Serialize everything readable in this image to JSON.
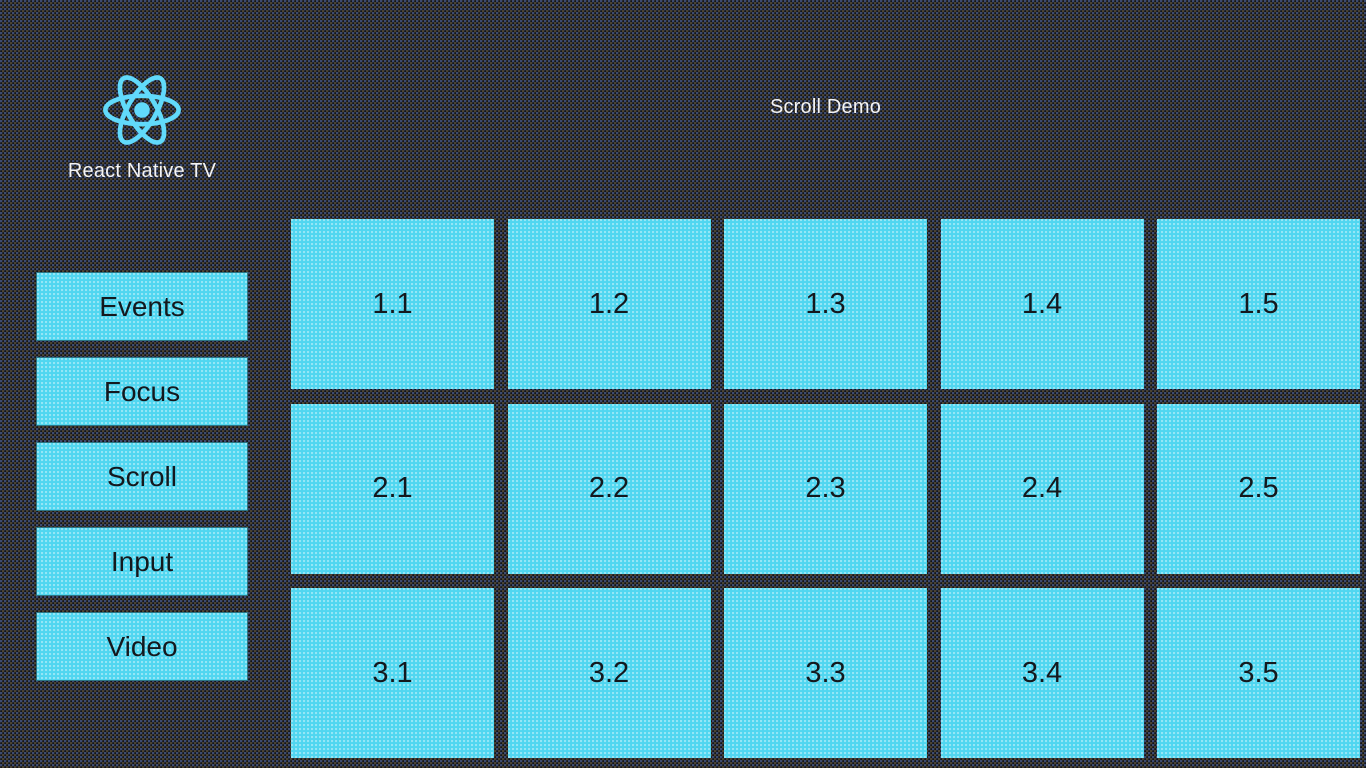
{
  "app": {
    "brand": "React Native TV",
    "title": "Scroll Demo"
  },
  "colors": {
    "background_base": "#121419",
    "background_dot_blue": "#3d4b70",
    "background_dot_warm": "#4b4332",
    "tile_fill": "#50d6f0",
    "tile_text": "#14181d",
    "text_light": "#f4f4f4",
    "logo_accent": "#61dafb"
  },
  "icons": {
    "logo": "react-atom-icon"
  },
  "sidebar": {
    "items": [
      {
        "label": "Events"
      },
      {
        "label": "Focus"
      },
      {
        "label": "Scroll"
      },
      {
        "label": "Input"
      },
      {
        "label": "Video"
      }
    ]
  },
  "grid": {
    "rows": [
      {
        "cells": [
          "1.1",
          "1.2",
          "1.3",
          "1.4",
          "1.5"
        ]
      },
      {
        "cells": [
          "2.1",
          "2.2",
          "2.3",
          "2.4",
          "2.5"
        ]
      },
      {
        "cells": [
          "3.1",
          "3.2",
          "3.3",
          "3.4",
          "3.5"
        ]
      }
    ]
  }
}
